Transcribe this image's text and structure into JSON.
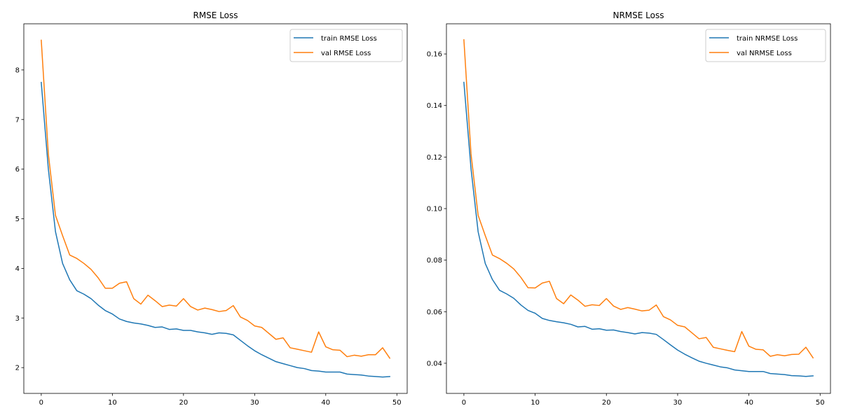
{
  "chart_data": [
    {
      "type": "line",
      "title": "RMSE Loss",
      "xlabel": "",
      "ylabel": "",
      "xlim": [
        -2.45,
        51.45
      ],
      "ylim": [
        1.48,
        8.93
      ],
      "xticks": [
        "0",
        "10",
        "20",
        "30",
        "40",
        "50"
      ],
      "yticks": [
        "2",
        "3",
        "4",
        "5",
        "6",
        "7",
        "8"
      ],
      "legend": "top-right",
      "grid": false,
      "x": [
        0,
        1,
        2,
        3,
        4,
        5,
        6,
        7,
        8,
        9,
        10,
        11,
        12,
        13,
        14,
        15,
        16,
        17,
        18,
        19,
        20,
        21,
        22,
        23,
        24,
        25,
        26,
        27,
        28,
        29,
        30,
        31,
        32,
        33,
        34,
        35,
        36,
        37,
        38,
        39,
        40,
        41,
        42,
        43,
        44,
        45,
        46,
        47,
        48,
        49
      ],
      "series": [
        {
          "name": "train RMSE Loss",
          "color": "#1f77b4",
          "values": [
            7.75,
            6.0,
            4.74,
            4.1,
            3.77,
            3.55,
            3.48,
            3.39,
            3.26,
            3.15,
            3.08,
            2.98,
            2.93,
            2.9,
            2.88,
            2.85,
            2.81,
            2.82,
            2.77,
            2.78,
            2.75,
            2.75,
            2.72,
            2.7,
            2.67,
            2.7,
            2.69,
            2.66,
            2.55,
            2.44,
            2.34,
            2.26,
            2.19,
            2.12,
            2.08,
            2.04,
            2.0,
            1.98,
            1.94,
            1.93,
            1.91,
            1.91,
            1.91,
            1.87,
            1.86,
            1.85,
            1.83,
            1.82,
            1.81,
            1.82
          ]
        },
        {
          "name": "val RMSE Loss",
          "color": "#ff7f0e",
          "values": [
            8.6,
            6.3,
            5.07,
            4.66,
            4.27,
            4.2,
            4.1,
            3.98,
            3.81,
            3.6,
            3.6,
            3.7,
            3.73,
            3.39,
            3.28,
            3.46,
            3.35,
            3.23,
            3.26,
            3.24,
            3.39,
            3.23,
            3.16,
            3.2,
            3.17,
            3.13,
            3.15,
            3.25,
            3.02,
            2.95,
            2.84,
            2.81,
            2.69,
            2.57,
            2.6,
            2.4,
            2.37,
            2.34,
            2.31,
            2.72,
            2.42,
            2.36,
            2.35,
            2.22,
            2.25,
            2.23,
            2.26,
            2.26,
            2.4,
            2.19
          ]
        }
      ]
    },
    {
      "type": "line",
      "title": "NRMSE Loss",
      "xlabel": "",
      "ylabel": "",
      "xlim": [
        -2.45,
        51.45
      ],
      "ylim": [
        0.0283,
        0.1717
      ],
      "xticks": [
        "0",
        "10",
        "20",
        "30",
        "40",
        "50"
      ],
      "yticks": [
        "0.04",
        "0.06",
        "0.08",
        "0.10",
        "0.12",
        "0.14",
        "0.16"
      ],
      "legend": "top-right",
      "grid": false,
      "x": [
        0,
        1,
        2,
        3,
        4,
        5,
        6,
        7,
        8,
        9,
        10,
        11,
        12,
        13,
        14,
        15,
        16,
        17,
        18,
        19,
        20,
        21,
        22,
        23,
        24,
        25,
        26,
        27,
        28,
        29,
        30,
        31,
        32,
        33,
        34,
        35,
        36,
        37,
        38,
        39,
        40,
        41,
        42,
        43,
        44,
        45,
        46,
        47,
        48,
        49
      ],
      "series": [
        {
          "name": "train NRMSE Loss",
          "color": "#1f77b4",
          "values": [
            0.149,
            0.1155,
            0.091,
            0.0787,
            0.0725,
            0.0683,
            0.0669,
            0.0652,
            0.0626,
            0.0605,
            0.0594,
            0.0574,
            0.0566,
            0.0561,
            0.0557,
            0.0551,
            0.0541,
            0.0543,
            0.0532,
            0.0534,
            0.0528,
            0.0529,
            0.0523,
            0.0519,
            0.0514,
            0.0519,
            0.0517,
            0.0512,
            0.0492,
            0.0471,
            0.0451,
            0.0435,
            0.0421,
            0.0408,
            0.04,
            0.0393,
            0.0386,
            0.0382,
            0.0374,
            0.0371,
            0.0368,
            0.0368,
            0.0368,
            0.036,
            0.0358,
            0.0356,
            0.0352,
            0.0351,
            0.0349,
            0.0351
          ]
        },
        {
          "name": "val NRMSE Loss",
          "color": "#ff7f0e",
          "values": [
            0.1655,
            0.1212,
            0.0974,
            0.0895,
            0.082,
            0.0806,
            0.0788,
            0.0766,
            0.0733,
            0.0693,
            0.0692,
            0.0711,
            0.0718,
            0.0651,
            0.0631,
            0.0665,
            0.0645,
            0.0621,
            0.0627,
            0.0624,
            0.0651,
            0.0622,
            0.0609,
            0.0616,
            0.061,
            0.0603,
            0.0606,
            0.0626,
            0.0581,
            0.0568,
            0.0547,
            0.0541,
            0.0518,
            0.0495,
            0.05,
            0.0462,
            0.0456,
            0.045,
            0.0445,
            0.0523,
            0.0466,
            0.0454,
            0.0452,
            0.0427,
            0.0433,
            0.0429,
            0.0434,
            0.0435,
            0.0462,
            0.0421
          ]
        }
      ]
    }
  ]
}
